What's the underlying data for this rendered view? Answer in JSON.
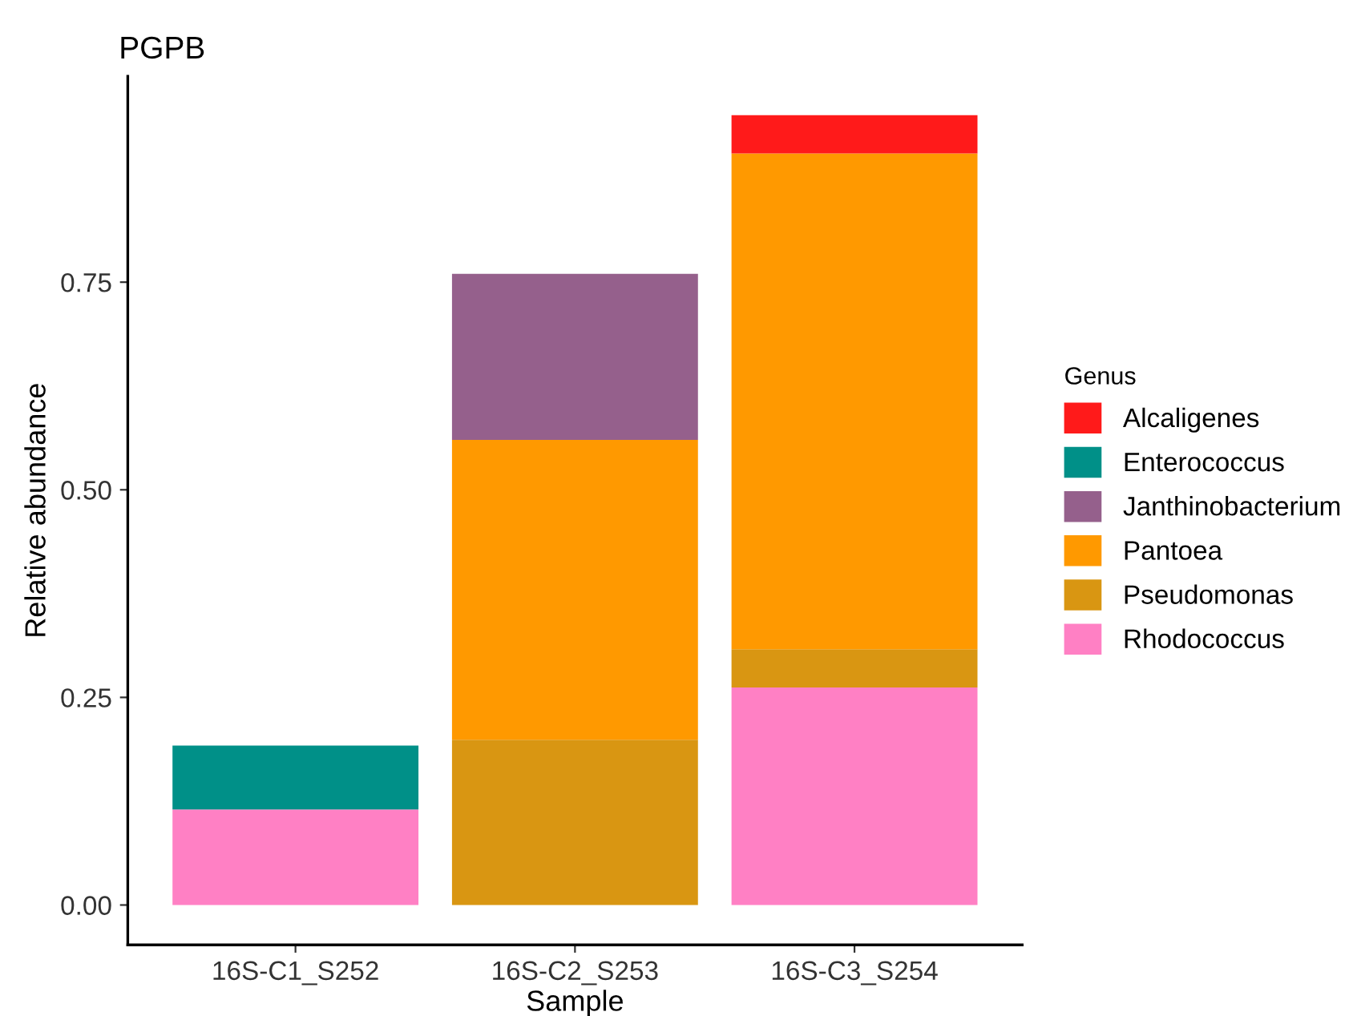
{
  "chart_data": {
    "type": "bar",
    "title": "PGPB",
    "xlabel": "Sample",
    "ylabel": "Relative abundance",
    "legend_title": "Genus",
    "categories": [
      "16S-C1_S252",
      "16S-C2_S253",
      "16S-C3_S254"
    ],
    "stacked": true,
    "series": [
      {
        "name": "Rhodococcus",
        "color": "#ff80c4",
        "values": [
          0.115,
          null,
          0.262
        ]
      },
      {
        "name": "Pseudomonas",
        "color": "#d99612",
        "values": [
          null,
          0.199,
          0.046
        ]
      },
      {
        "name": "Pantoea",
        "color": "#ff9900",
        "values": [
          null,
          0.361,
          0.597
        ]
      },
      {
        "name": "Janthinobacterium",
        "color": "#95608c",
        "values": [
          null,
          0.2,
          null
        ]
      },
      {
        "name": "Enterococcus",
        "color": "#009088",
        "values": [
          0.077,
          null,
          null
        ]
      },
      {
        "name": "Alcaligenes",
        "color": "#ff1a1a",
        "values": [
          null,
          null,
          0.046
        ]
      }
    ],
    "ylim": [
      -0.048,
      0.998
    ],
    "yticks": [
      {
        "value": 0,
        "label": "0.00"
      },
      {
        "value": 0.25,
        "label": "0.25"
      },
      {
        "value": 0.5,
        "label": "0.50"
      },
      {
        "value": 0.75,
        "label": "0.75"
      }
    ],
    "grid": false,
    "legend": "right"
  }
}
